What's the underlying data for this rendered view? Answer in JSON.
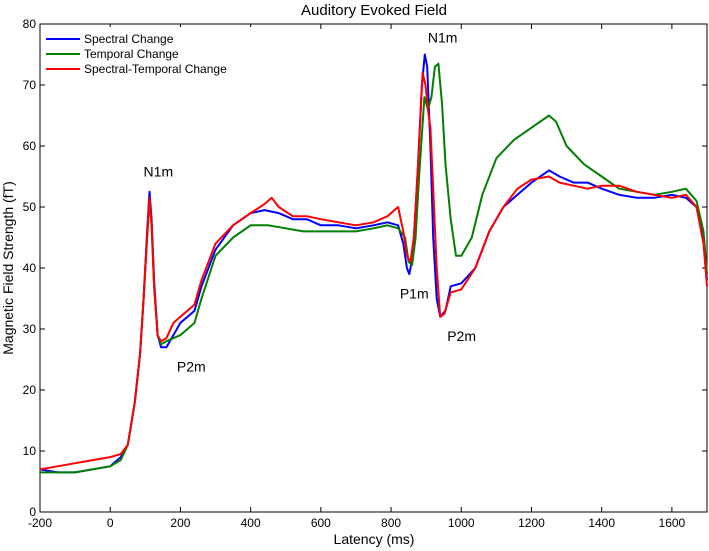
{
  "chart_data": {
    "type": "line",
    "title": "Auditory Evoked Field",
    "xlabel": "Latency (ms)",
    "ylabel": "Magnetic Field Strength (fT)",
    "xlim": [
      -200,
      1700
    ],
    "ylim": [
      0,
      80
    ],
    "xticks": [
      -200,
      0,
      200,
      400,
      600,
      800,
      1000,
      1200,
      1400,
      1600
    ],
    "yticks": [
      0,
      10,
      20,
      30,
      40,
      50,
      60,
      70,
      80
    ],
    "grid": false,
    "legend_position": "top-left",
    "series": [
      {
        "name": "Spectral Change",
        "color": "#0000ff",
        "points": [
          [
            -200,
            7
          ],
          [
            -150,
            6.5
          ],
          [
            -100,
            6.5
          ],
          [
            -50,
            7
          ],
          [
            0,
            7.5
          ],
          [
            30,
            9
          ],
          [
            50,
            11
          ],
          [
            70,
            18
          ],
          [
            85,
            26
          ],
          [
            95,
            35
          ],
          [
            105,
            46
          ],
          [
            112,
            52.5
          ],
          [
            118,
            48
          ],
          [
            125,
            38
          ],
          [
            135,
            29
          ],
          [
            145,
            27
          ],
          [
            160,
            27
          ],
          [
            180,
            29
          ],
          [
            200,
            31
          ],
          [
            240,
            33
          ],
          [
            260,
            37
          ],
          [
            300,
            43
          ],
          [
            350,
            47
          ],
          [
            400,
            49
          ],
          [
            440,
            49.5
          ],
          [
            480,
            49
          ],
          [
            520,
            48
          ],
          [
            560,
            48
          ],
          [
            600,
            47
          ],
          [
            650,
            47
          ],
          [
            700,
            46.5
          ],
          [
            750,
            47
          ],
          [
            790,
            47.5
          ],
          [
            820,
            47
          ],
          [
            835,
            44
          ],
          [
            845,
            40
          ],
          [
            852,
            39
          ],
          [
            862,
            42
          ],
          [
            875,
            55
          ],
          [
            888,
            70
          ],
          [
            896,
            75
          ],
          [
            903,
            73
          ],
          [
            912,
            60
          ],
          [
            920,
            45
          ],
          [
            930,
            35
          ],
          [
            940,
            32
          ],
          [
            955,
            33
          ],
          [
            970,
            37
          ],
          [
            1000,
            37.5
          ],
          [
            1040,
            40
          ],
          [
            1080,
            46
          ],
          [
            1120,
            50
          ],
          [
            1160,
            52
          ],
          [
            1200,
            54
          ],
          [
            1250,
            56
          ],
          [
            1280,
            55
          ],
          [
            1320,
            54
          ],
          [
            1360,
            54
          ],
          [
            1400,
            53
          ],
          [
            1450,
            52
          ],
          [
            1500,
            51.5
          ],
          [
            1550,
            51.5
          ],
          [
            1600,
            52
          ],
          [
            1640,
            51.5
          ],
          [
            1670,
            50
          ],
          [
            1690,
            45
          ],
          [
            1700,
            38
          ]
        ]
      },
      {
        "name": "Temporal Change",
        "color": "#008000",
        "points": [
          [
            -200,
            6.5
          ],
          [
            -150,
            6.5
          ],
          [
            -100,
            6.5
          ],
          [
            -50,
            7
          ],
          [
            0,
            7.5
          ],
          [
            30,
            8.5
          ],
          [
            50,
            11
          ],
          [
            70,
            18
          ],
          [
            85,
            26
          ],
          [
            95,
            35
          ],
          [
            105,
            45
          ],
          [
            112,
            51
          ],
          [
            118,
            47
          ],
          [
            125,
            37
          ],
          [
            135,
            29
          ],
          [
            145,
            27.5
          ],
          [
            160,
            28
          ],
          [
            200,
            29
          ],
          [
            240,
            31
          ],
          [
            260,
            35
          ],
          [
            300,
            42
          ],
          [
            350,
            45
          ],
          [
            400,
            47
          ],
          [
            450,
            47
          ],
          [
            500,
            46.5
          ],
          [
            550,
            46
          ],
          [
            600,
            46
          ],
          [
            650,
            46
          ],
          [
            700,
            46
          ],
          [
            750,
            46.5
          ],
          [
            790,
            47
          ],
          [
            820,
            46.5
          ],
          [
            840,
            45
          ],
          [
            850,
            41
          ],
          [
            860,
            40.5
          ],
          [
            870,
            45
          ],
          [
            880,
            55
          ],
          [
            895,
            68
          ],
          [
            905,
            66
          ],
          [
            915,
            68
          ],
          [
            925,
            73
          ],
          [
            935,
            73.5
          ],
          [
            945,
            67
          ],
          [
            955,
            57
          ],
          [
            970,
            48
          ],
          [
            985,
            42
          ],
          [
            1000,
            42
          ],
          [
            1030,
            45
          ],
          [
            1060,
            52
          ],
          [
            1100,
            58
          ],
          [
            1150,
            61
          ],
          [
            1200,
            63
          ],
          [
            1250,
            65
          ],
          [
            1270,
            64
          ],
          [
            1300,
            60
          ],
          [
            1350,
            57
          ],
          [
            1400,
            55
          ],
          [
            1450,
            53
          ],
          [
            1500,
            52.5
          ],
          [
            1550,
            52
          ],
          [
            1600,
            52.5
          ],
          [
            1640,
            53
          ],
          [
            1670,
            51
          ],
          [
            1690,
            46
          ],
          [
            1700,
            39
          ]
        ]
      },
      {
        "name": "Spectral-Temporal Change",
        "color": "#ff0000",
        "points": [
          [
            -200,
            7
          ],
          [
            -150,
            7.5
          ],
          [
            -100,
            8
          ],
          [
            -50,
            8.5
          ],
          [
            0,
            9
          ],
          [
            30,
            9.5
          ],
          [
            50,
            11
          ],
          [
            70,
            18
          ],
          [
            85,
            26
          ],
          [
            95,
            35
          ],
          [
            105,
            45
          ],
          [
            112,
            51.5
          ],
          [
            118,
            47
          ],
          [
            125,
            37
          ],
          [
            135,
            29
          ],
          [
            145,
            28
          ],
          [
            160,
            28.5
          ],
          [
            180,
            31
          ],
          [
            200,
            32
          ],
          [
            240,
            34
          ],
          [
            260,
            38
          ],
          [
            300,
            44
          ],
          [
            350,
            47
          ],
          [
            400,
            49
          ],
          [
            440,
            50.5
          ],
          [
            460,
            51.5
          ],
          [
            480,
            50
          ],
          [
            520,
            48.5
          ],
          [
            560,
            48.5
          ],
          [
            600,
            48
          ],
          [
            650,
            47.5
          ],
          [
            700,
            47
          ],
          [
            750,
            47.5
          ],
          [
            790,
            48.5
          ],
          [
            820,
            50
          ],
          [
            835,
            46
          ],
          [
            845,
            42
          ],
          [
            855,
            41
          ],
          [
            865,
            45
          ],
          [
            878,
            58
          ],
          [
            890,
            72
          ],
          [
            898,
            70
          ],
          [
            905,
            66
          ],
          [
            912,
            63
          ],
          [
            920,
            53
          ],
          [
            930,
            40
          ],
          [
            940,
            32
          ],
          [
            952,
            32.5
          ],
          [
            970,
            36
          ],
          [
            1000,
            36.5
          ],
          [
            1040,
            40
          ],
          [
            1080,
            46
          ],
          [
            1120,
            50
          ],
          [
            1160,
            53
          ],
          [
            1200,
            54.5
          ],
          [
            1250,
            55
          ],
          [
            1280,
            54
          ],
          [
            1320,
            53.5
          ],
          [
            1360,
            53
          ],
          [
            1400,
            53.5
          ],
          [
            1450,
            53.5
          ],
          [
            1500,
            52.5
          ],
          [
            1550,
            52
          ],
          [
            1600,
            51.5
          ],
          [
            1640,
            52
          ],
          [
            1670,
            50
          ],
          [
            1690,
            44
          ],
          [
            1700,
            37
          ]
        ]
      }
    ],
    "annotations": [
      {
        "text": "N1m",
        "x": 95,
        "y": 55
      },
      {
        "text": "P2m",
        "x": 190,
        "y": 23
      },
      {
        "text": "N1m",
        "x": 905,
        "y": 77
      },
      {
        "text": "P1m",
        "x": 825,
        "y": 35
      },
      {
        "text": "P2m",
        "x": 960,
        "y": 28
      }
    ]
  }
}
